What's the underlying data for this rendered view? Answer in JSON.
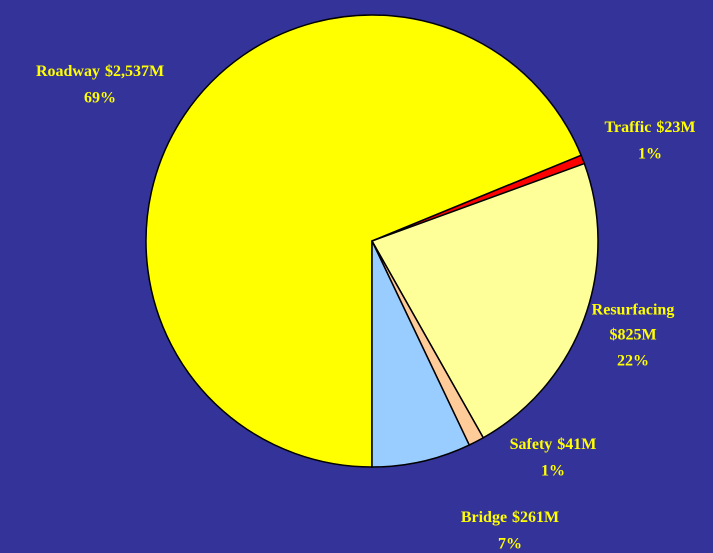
{
  "chart_data": {
    "type": "pie",
    "categories": [
      "Roadway",
      "Traffic",
      "Resurfacing",
      "Safety",
      "Bridge"
    ],
    "values": [
      2537,
      23,
      825,
      41,
      261
    ],
    "value_labels": [
      "$2,537M",
      "$23M",
      "$825M",
      "$41M",
      "$261M"
    ],
    "percent_labels": [
      "69%",
      "1%",
      "22%",
      "1%",
      "7%"
    ],
    "colors": [
      "#ffff00",
      "#ff0000",
      "#ffff99",
      "#ffcc99",
      "#99ccff"
    ]
  }
}
